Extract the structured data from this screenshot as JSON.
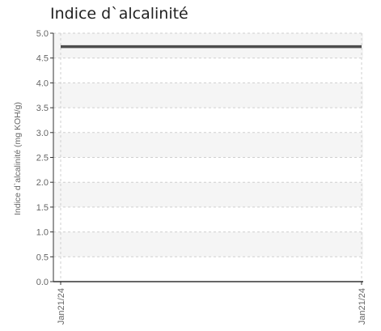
{
  "chart_data": {
    "type": "line",
    "title": "Indice d`alcalinité",
    "ylabel": "Indice d`alcalinité (mg KOH/g)",
    "xlabel": "",
    "ylim": [
      0,
      5
    ],
    "y_ticks": [
      "0.0",
      "0.5",
      "1.0",
      "1.5",
      "2.0",
      "2.5",
      "3.0",
      "3.5",
      "4.0",
      "4.5",
      "5.0"
    ],
    "x_ticks": [
      "Jan21/24",
      "Jan21/24"
    ],
    "grid": true,
    "series": [
      {
        "points": [
          {
            "x": "Jan21/24",
            "y": 4.73
          },
          {
            "x": "Jan21/24",
            "y": 4.73
          }
        ]
      }
    ],
    "colors": {
      "series": "#4d4d4d",
      "band": "#f5f5f5",
      "grid": "#cfcfcf",
      "axis": "#333333",
      "text": "#666666"
    }
  }
}
